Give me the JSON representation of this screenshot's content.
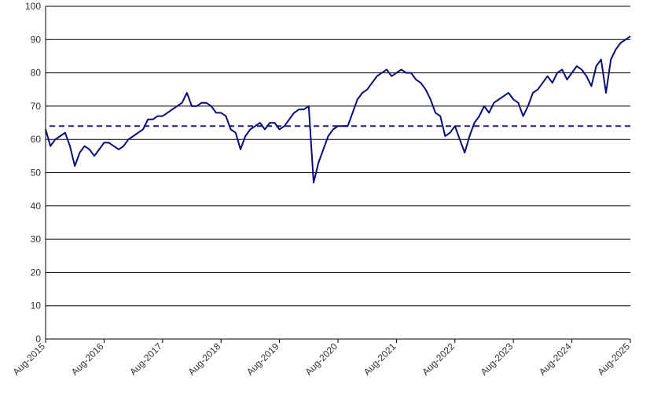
{
  "chart_data": {
    "type": "line",
    "title": "",
    "xlabel": "",
    "ylabel": "",
    "ylim": [
      0,
      100
    ],
    "yticks": [
      0,
      10,
      20,
      30,
      40,
      50,
      60,
      70,
      80,
      90,
      100
    ],
    "xlim": [
      "2015-08",
      "2025-08"
    ],
    "x_ticks": [
      "Aug-2015",
      "Aug-2016",
      "Aug-2017",
      "Aug-2018",
      "Aug-2019",
      "Aug-2020",
      "Aug-2021",
      "Aug-2022",
      "Aug-2023",
      "Aug-2024",
      "Aug-2025"
    ],
    "grid": "horizontal",
    "legend": "none",
    "reference_line": {
      "value": 64,
      "style": "dashed",
      "color": "#1a1a6e"
    },
    "series": [
      {
        "color": "#0a0a78",
        "points": [
          [
            "2015-08",
            63
          ],
          [
            "2015-09",
            58
          ],
          [
            "2015-10",
            60
          ],
          [
            "2015-11",
            61
          ],
          [
            "2015-12",
            62
          ],
          [
            "2016-01",
            58
          ],
          [
            "2016-02",
            52
          ],
          [
            "2016-03",
            56
          ],
          [
            "2016-04",
            58
          ],
          [
            "2016-05",
            57
          ],
          [
            "2016-06",
            55
          ],
          [
            "2016-07",
            57
          ],
          [
            "2016-08",
            59
          ],
          [
            "2016-09",
            59
          ],
          [
            "2016-10",
            58
          ],
          [
            "2016-11",
            57
          ],
          [
            "2016-12",
            58
          ],
          [
            "2017-01",
            60
          ],
          [
            "2017-02",
            61
          ],
          [
            "2017-03",
            62
          ],
          [
            "2017-04",
            63
          ],
          [
            "2017-05",
            66
          ],
          [
            "2017-06",
            66
          ],
          [
            "2017-07",
            67
          ],
          [
            "2017-08",
            67
          ],
          [
            "2017-09",
            68
          ],
          [
            "2017-10",
            69
          ],
          [
            "2017-11",
            70
          ],
          [
            "2017-12",
            71
          ],
          [
            "2018-01",
            74
          ],
          [
            "2018-02",
            70
          ],
          [
            "2018-03",
            70
          ],
          [
            "2018-04",
            71
          ],
          [
            "2018-05",
            71
          ],
          [
            "2018-06",
            70
          ],
          [
            "2018-07",
            68
          ],
          [
            "2018-08",
            68
          ],
          [
            "2018-09",
            67
          ],
          [
            "2018-10",
            63
          ],
          [
            "2018-11",
            62
          ],
          [
            "2018-12",
            57
          ],
          [
            "2019-01",
            61
          ],
          [
            "2019-02",
            63
          ],
          [
            "2019-03",
            64
          ],
          [
            "2019-04",
            65
          ],
          [
            "2019-05",
            63
          ],
          [
            "2019-06",
            65
          ],
          [
            "2019-07",
            65
          ],
          [
            "2019-08",
            63
          ],
          [
            "2019-09",
            64
          ],
          [
            "2019-10",
            66
          ],
          [
            "2019-11",
            68
          ],
          [
            "2019-12",
            69
          ],
          [
            "2020-01",
            69
          ],
          [
            "2020-02",
            70
          ],
          [
            "2020-03",
            47
          ],
          [
            "2020-04",
            53
          ],
          [
            "2020-05",
            57
          ],
          [
            "2020-06",
            61
          ],
          [
            "2020-07",
            63
          ],
          [
            "2020-08",
            64
          ],
          [
            "2020-09",
            64
          ],
          [
            "2020-10",
            64
          ],
          [
            "2020-11",
            68
          ],
          [
            "2020-12",
            72
          ],
          [
            "2021-01",
            74
          ],
          [
            "2021-02",
            75
          ],
          [
            "2021-03",
            77
          ],
          [
            "2021-04",
            79
          ],
          [
            "2021-05",
            80
          ],
          [
            "2021-06",
            81
          ],
          [
            "2021-07",
            79
          ],
          [
            "2021-08",
            80
          ],
          [
            "2021-09",
            81
          ],
          [
            "2021-10",
            80
          ],
          [
            "2021-11",
            80
          ],
          [
            "2021-12",
            78
          ],
          [
            "2022-01",
            77
          ],
          [
            "2022-02",
            75
          ],
          [
            "2022-03",
            72
          ],
          [
            "2022-04",
            68
          ],
          [
            "2022-05",
            67
          ],
          [
            "2022-06",
            61
          ],
          [
            "2022-07",
            62
          ],
          [
            "2022-08",
            64
          ],
          [
            "2022-09",
            60
          ],
          [
            "2022-10",
            56
          ],
          [
            "2022-11",
            61
          ],
          [
            "2022-12",
            65
          ],
          [
            "2023-01",
            67
          ],
          [
            "2023-02",
            70
          ],
          [
            "2023-03",
            68
          ],
          [
            "2023-04",
            71
          ],
          [
            "2023-05",
            72
          ],
          [
            "2023-06",
            73
          ],
          [
            "2023-07",
            74
          ],
          [
            "2023-08",
            72
          ],
          [
            "2023-09",
            71
          ],
          [
            "2023-10",
            67
          ],
          [
            "2023-11",
            70
          ],
          [
            "2023-12",
            74
          ],
          [
            "2024-01",
            75
          ],
          [
            "2024-02",
            77
          ],
          [
            "2024-03",
            79
          ],
          [
            "2024-04",
            77
          ],
          [
            "2024-05",
            80
          ],
          [
            "2024-06",
            81
          ],
          [
            "2024-07",
            78
          ],
          [
            "2024-08",
            80
          ],
          [
            "2024-09",
            82
          ],
          [
            "2024-10",
            81
          ],
          [
            "2024-11",
            79
          ],
          [
            "2024-12",
            76
          ],
          [
            "2025-01",
            82
          ],
          [
            "2025-02",
            84
          ],
          [
            "2025-03",
            74
          ],
          [
            "2025-04",
            84
          ],
          [
            "2025-05",
            87
          ],
          [
            "2025-06",
            89
          ],
          [
            "2025-07",
            90
          ],
          [
            "2025-08",
            91
          ]
        ]
      }
    ]
  }
}
